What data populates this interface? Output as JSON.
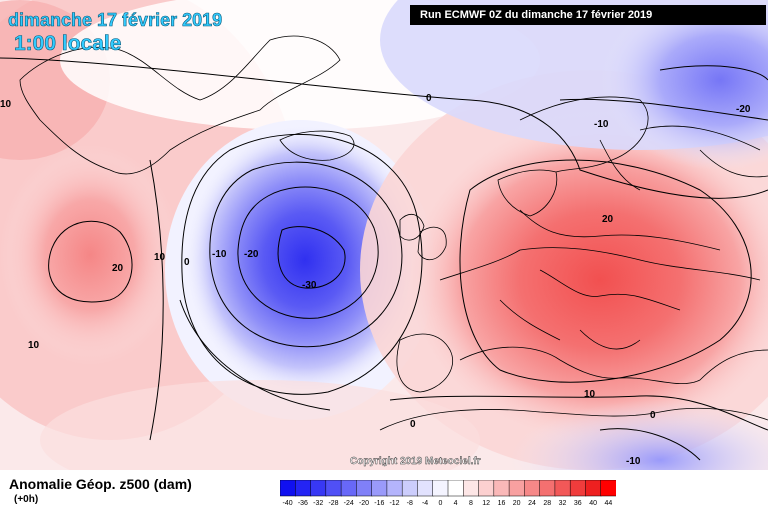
{
  "header": {
    "date": "dimanche 17 février 2019",
    "time": "1:00 locale",
    "run": "Run ECMWF 0Z du dimanche 17 février 2019"
  },
  "footer": {
    "field": "Anomalie Géop. z500 (dam)",
    "lead": "(+0h)",
    "copyright": "Copyright 2019 Meteociel.fr"
  },
  "legend": {
    "ticks": [
      "-40",
      "-36",
      "-32",
      "-28",
      "-24",
      "-20",
      "-16",
      "-12",
      "-8",
      "-4",
      "0",
      "4",
      "8",
      "12",
      "16",
      "20",
      "24",
      "28",
      "32",
      "36",
      "40",
      "44"
    ],
    "colors": [
      "#1010f0",
      "#2424f4",
      "#3838f4",
      "#5050f6",
      "#6868f8",
      "#8080f8",
      "#9a9afa",
      "#b4b4fc",
      "#cccdfc",
      "#e2e2fe",
      "#f4f4ff",
      "#ffffff",
      "#fde6e6",
      "#fcd0d0",
      "#fab8b8",
      "#f8a0a0",
      "#f68888",
      "#f47070",
      "#f25858",
      "#f03c3c",
      "#ee2020",
      "#ff0000"
    ]
  },
  "contour_labels": {
    "low_center": "-30",
    "low_inner": "-20",
    "low_outer": "-10",
    "zero_west": "0",
    "zero_north": "0",
    "zero_south": "0",
    "ten_west": "10",
    "ten_west_low": "10",
    "ten_west_edge": "10",
    "twenty_west": "20",
    "twenty_europe": "20",
    "ten_scand": "-10",
    "twenty_scand": "-20",
    "ten_south": "10",
    "zero_south_east": "0",
    "ten_south_east": "-10"
  },
  "colors": {
    "title_cyan": "#33ccff",
    "run_box_bg": "#000000"
  }
}
